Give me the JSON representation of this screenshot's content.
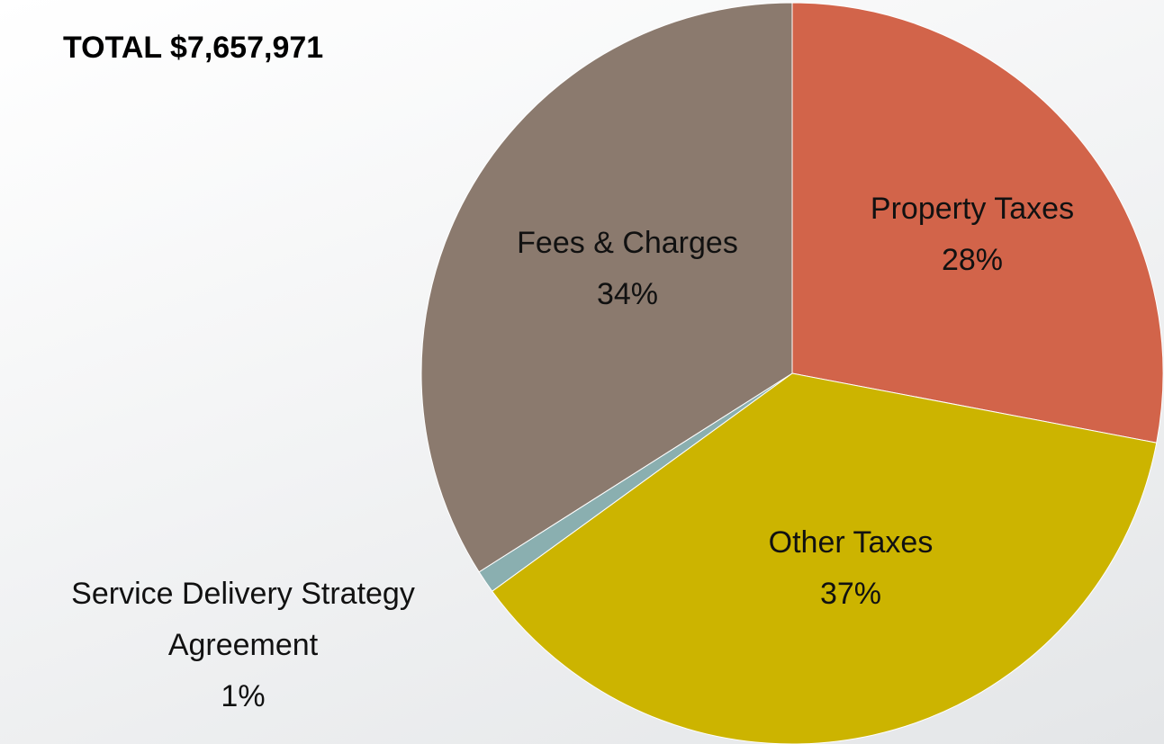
{
  "chart_data": {
    "type": "pie",
    "title": "TOTAL $7,657,971",
    "categories": [
      "Property Taxes",
      "Other Taxes",
      "Service Delivery Strategy Agreement",
      "Fees & Charges"
    ],
    "values": [
      28,
      37,
      1,
      34
    ],
    "value_labels": [
      "28%",
      "37%",
      "1%",
      "34%"
    ],
    "colors": [
      "#d2644a",
      "#ccb400",
      "#8aafb0",
      "#8b7a6e"
    ]
  }
}
